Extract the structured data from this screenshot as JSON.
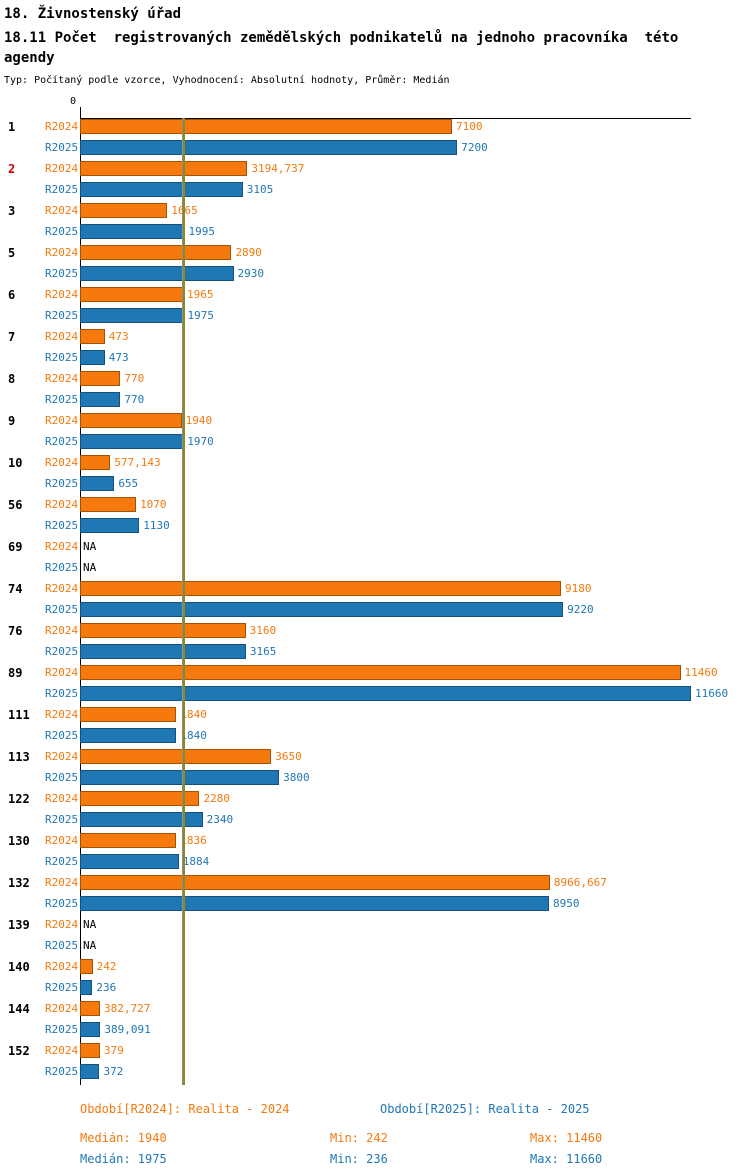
{
  "header": {
    "title": "18. Živnostenský úřad",
    "subtitle": "18.11 Počet  registrovaných zemědělských podnikatelů na jednoho pracovníka  této agendy",
    "meta": "Typ: Počítaný podle vzorce, Vyhodnocení: Absolutní hodnoty, Průměr: Medián"
  },
  "chart_data": {
    "type": "bar",
    "orientation": "horizontal",
    "axis_zero_label": "0",
    "xlim": [
      0,
      11660
    ],
    "grid": false,
    "legend_position": "bottom",
    "series_labels": {
      "r2024": "R2024",
      "r2025": "R2025"
    },
    "colors": {
      "r2024": "#f5790d",
      "r2025": "#1f77b4",
      "median_2024_line": "#8c8c8c",
      "median_2025_line": "#8f8a1e",
      "category_highlight": "#cc0000"
    },
    "medians": {
      "r2024": 1940,
      "r2025": 1975
    },
    "categories": [
      {
        "label": "1",
        "highlight": false,
        "r2024": 7100,
        "r2025": 7200,
        "r2024_text": "7100",
        "r2025_text": "7200"
      },
      {
        "label": "2",
        "highlight": true,
        "r2024": 3194.737,
        "r2025": 3105,
        "r2024_text": "3194,737",
        "r2025_text": "3105"
      },
      {
        "label": "3",
        "highlight": false,
        "r2024": 1665,
        "r2025": 1995,
        "r2024_text": "1665",
        "r2025_text": "1995"
      },
      {
        "label": "5",
        "highlight": false,
        "r2024": 2890,
        "r2025": 2930,
        "r2024_text": "2890",
        "r2025_text": "2930"
      },
      {
        "label": "6",
        "highlight": false,
        "r2024": 1965,
        "r2025": 1975,
        "r2024_text": "1965",
        "r2025_text": "1975"
      },
      {
        "label": "7",
        "highlight": false,
        "r2024": 473,
        "r2025": 473,
        "r2024_text": "473",
        "r2025_text": "473"
      },
      {
        "label": "8",
        "highlight": false,
        "r2024": 770,
        "r2025": 770,
        "r2024_text": "770",
        "r2025_text": "770"
      },
      {
        "label": "9",
        "highlight": false,
        "r2024": 1940,
        "r2025": 1970,
        "r2024_text": "1940",
        "r2025_text": "1970"
      },
      {
        "label": "10",
        "highlight": false,
        "r2024": 577.143,
        "r2025": 655,
        "r2024_text": "577,143",
        "r2025_text": "655"
      },
      {
        "label": "56",
        "highlight": false,
        "r2024": 1070,
        "r2025": 1130,
        "r2024_text": "1070",
        "r2025_text": "1130"
      },
      {
        "label": "69",
        "highlight": false,
        "r2024": null,
        "r2025": null,
        "r2024_text": "NA",
        "r2025_text": "NA"
      },
      {
        "label": "74",
        "highlight": false,
        "r2024": 9180,
        "r2025": 9220,
        "r2024_text": "9180",
        "r2025_text": "9220"
      },
      {
        "label": "76",
        "highlight": false,
        "r2024": 3160,
        "r2025": 3165,
        "r2024_text": "3160",
        "r2025_text": "3165"
      },
      {
        "label": "89",
        "highlight": false,
        "r2024": 11460,
        "r2025": 11660,
        "r2024_text": "11460",
        "r2025_text": "11660"
      },
      {
        "label": "111",
        "highlight": false,
        "r2024": 1840,
        "r2025": 1840,
        "r2024_text": "1840",
        "r2025_text": "1840"
      },
      {
        "label": "113",
        "highlight": false,
        "r2024": 3650,
        "r2025": 3800,
        "r2024_text": "3650",
        "r2025_text": "3800"
      },
      {
        "label": "122",
        "highlight": false,
        "r2024": 2280,
        "r2025": 2340,
        "r2024_text": "2280",
        "r2025_text": "2340"
      },
      {
        "label": "130",
        "highlight": false,
        "r2024": 1836,
        "r2025": 1884,
        "r2024_text": "1836",
        "r2025_text": "1884"
      },
      {
        "label": "132",
        "highlight": false,
        "r2024": 8966.667,
        "r2025": 8950,
        "r2024_text": "8966,667",
        "r2025_text": "8950"
      },
      {
        "label": "139",
        "highlight": false,
        "r2024": null,
        "r2025": null,
        "r2024_text": "NA",
        "r2025_text": "NA"
      },
      {
        "label": "140",
        "highlight": false,
        "r2024": 242,
        "r2025": 236,
        "r2024_text": "242",
        "r2025_text": "236"
      },
      {
        "label": "144",
        "highlight": false,
        "r2024": 382.727,
        "r2025": 389.091,
        "r2024_text": "382,727",
        "r2025_text": "389,091"
      },
      {
        "label": "152",
        "highlight": false,
        "r2024": 379,
        "r2025": 372,
        "r2024_text": "379",
        "r2025_text": "372"
      }
    ]
  },
  "legend": {
    "period_2024": "Období[R2024]: Realita - 2024",
    "period_2025": "Období[R2025]: Realita - 2025",
    "median_2024": "Medián: 1940",
    "min_2024": "Min: 242",
    "max_2024": "Max: 11460",
    "median_2025": "Medián: 1975",
    "min_2025": "Min: 236",
    "max_2025": "Max: 11660"
  }
}
